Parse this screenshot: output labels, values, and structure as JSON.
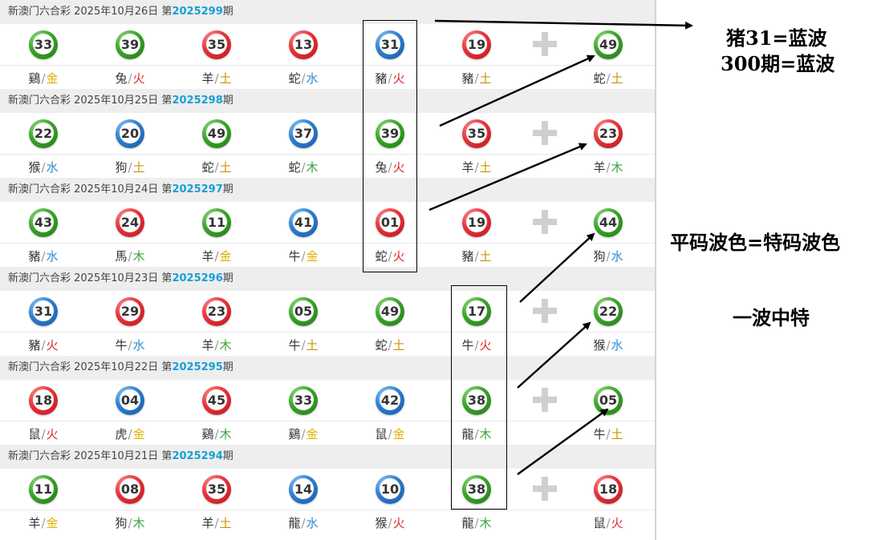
{
  "colors": {
    "red": "#e0292d",
    "green": "#3aa43a",
    "blue": "#2a8bd6",
    "issue": "#169fd8"
  },
  "draws": [
    {
      "header_prefix": "新澳门六合彩 2025年10月26日 第",
      "issue": "2025299",
      "header_suffix": "期",
      "balls": [
        {
          "num": "33",
          "color": "green",
          "zodiac": "鷄",
          "element": "金"
        },
        {
          "num": "39",
          "color": "green",
          "zodiac": "兔",
          "element": "火"
        },
        {
          "num": "35",
          "color": "red",
          "zodiac": "羊",
          "element": "土"
        },
        {
          "num": "13",
          "color": "red",
          "zodiac": "蛇",
          "element": "水"
        },
        {
          "num": "31",
          "color": "blue",
          "zodiac": "豬",
          "element": "火"
        },
        {
          "num": "19",
          "color": "red",
          "zodiac": "豬",
          "element": "土"
        },
        {
          "num": "49",
          "color": "green",
          "zodiac": "蛇",
          "element": "土"
        }
      ]
    },
    {
      "header_prefix": "新澳门六合彩 2025年10月25日 第",
      "issue": "2025298",
      "header_suffix": "期",
      "balls": [
        {
          "num": "22",
          "color": "green",
          "zodiac": "猴",
          "element": "水"
        },
        {
          "num": "20",
          "color": "blue",
          "zodiac": "狗",
          "element": "土"
        },
        {
          "num": "49",
          "color": "green",
          "zodiac": "蛇",
          "element": "土"
        },
        {
          "num": "37",
          "color": "blue",
          "zodiac": "蛇",
          "element": "木"
        },
        {
          "num": "39",
          "color": "green",
          "zodiac": "兔",
          "element": "火"
        },
        {
          "num": "35",
          "color": "red",
          "zodiac": "羊",
          "element": "土"
        },
        {
          "num": "23",
          "color": "red",
          "zodiac": "羊",
          "element": "木"
        }
      ]
    },
    {
      "header_prefix": "新澳门六合彩 2025年10月24日 第",
      "issue": "2025297",
      "header_suffix": "期",
      "balls": [
        {
          "num": "43",
          "color": "green",
          "zodiac": "豬",
          "element": "水"
        },
        {
          "num": "24",
          "color": "red",
          "zodiac": "馬",
          "element": "木"
        },
        {
          "num": "11",
          "color": "green",
          "zodiac": "羊",
          "element": "金"
        },
        {
          "num": "41",
          "color": "blue",
          "zodiac": "牛",
          "element": "金"
        },
        {
          "num": "01",
          "color": "red",
          "zodiac": "蛇",
          "element": "火"
        },
        {
          "num": "19",
          "color": "red",
          "zodiac": "豬",
          "element": "土"
        },
        {
          "num": "44",
          "color": "green",
          "zodiac": "狗",
          "element": "水"
        }
      ]
    },
    {
      "header_prefix": "新澳门六合彩 2025年10月23日 第",
      "issue": "2025296",
      "header_suffix": "期",
      "balls": [
        {
          "num": "31",
          "color": "blue",
          "zodiac": "豬",
          "element": "火"
        },
        {
          "num": "29",
          "color": "red",
          "zodiac": "牛",
          "element": "水"
        },
        {
          "num": "23",
          "color": "red",
          "zodiac": "羊",
          "element": "木"
        },
        {
          "num": "05",
          "color": "green",
          "zodiac": "牛",
          "element": "土"
        },
        {
          "num": "49",
          "color": "green",
          "zodiac": "蛇",
          "element": "土"
        },
        {
          "num": "17",
          "color": "green",
          "zodiac": "牛",
          "element": "火"
        },
        {
          "num": "22",
          "color": "green",
          "zodiac": "猴",
          "element": "水"
        }
      ]
    },
    {
      "header_prefix": "新澳门六合彩 2025年10月22日 第",
      "issue": "2025295",
      "header_suffix": "期",
      "balls": [
        {
          "num": "18",
          "color": "red",
          "zodiac": "鼠",
          "element": "火"
        },
        {
          "num": "04",
          "color": "blue",
          "zodiac": "虎",
          "element": "金"
        },
        {
          "num": "45",
          "color": "red",
          "zodiac": "鷄",
          "element": "木"
        },
        {
          "num": "33",
          "color": "green",
          "zodiac": "鷄",
          "element": "金"
        },
        {
          "num": "42",
          "color": "blue",
          "zodiac": "鼠",
          "element": "金"
        },
        {
          "num": "38",
          "color": "green",
          "zodiac": "龍",
          "element": "木"
        },
        {
          "num": "05",
          "color": "green",
          "zodiac": "牛",
          "element": "土"
        }
      ]
    },
    {
      "header_prefix": "新澳门六合彩 2025年10月21日 第",
      "issue": "2025294",
      "header_suffix": "期",
      "balls": [
        {
          "num": "11",
          "color": "green",
          "zodiac": "羊",
          "element": "金"
        },
        {
          "num": "08",
          "color": "red",
          "zodiac": "狗",
          "element": "木"
        },
        {
          "num": "35",
          "color": "red",
          "zodiac": "羊",
          "element": "土"
        },
        {
          "num": "14",
          "color": "blue",
          "zodiac": "龍",
          "element": "水"
        },
        {
          "num": "10",
          "color": "blue",
          "zodiac": "猴",
          "element": "火"
        },
        {
          "num": "38",
          "color": "green",
          "zodiac": "龍",
          "element": "木"
        },
        {
          "num": "18",
          "color": "red",
          "zodiac": "鼠",
          "element": "火"
        }
      ]
    }
  ],
  "annotations": {
    "note1_line1": "猪31=蓝波",
    "note1_line2": "300期=蓝波",
    "note2": "平码波色=特码波色",
    "note3": "一波中特"
  }
}
